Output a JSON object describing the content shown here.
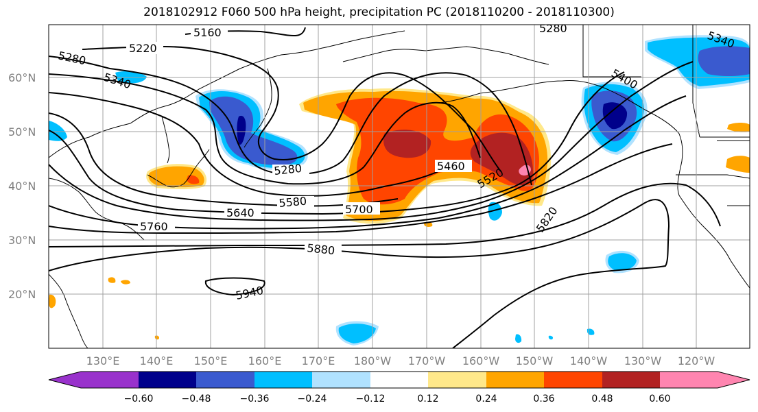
{
  "title": "2018102912 F060 500 hPa height, precipitation PC (2018110200 - 2018110300)",
  "latitude_labels": [
    "60°N",
    "50°N",
    "40°N",
    "30°N",
    "20°N"
  ],
  "longitude_labels": [
    "130°E",
    "140°E",
    "150°E",
    "160°E",
    "170°E",
    "180°W",
    "170°W",
    "160°W",
    "150°W",
    "140°W",
    "130°W",
    "120°W"
  ],
  "contour_labels": [
    "5160",
    "5220",
    "5280",
    "5280",
    "5340",
    "5340",
    "5280",
    "5400",
    "5460",
    "5520",
    "5580",
    "5640",
    "5700",
    "5760",
    "5820",
    "5880",
    "5940"
  ],
  "colorbar": {
    "ticks": [
      "−0.60",
      "−0.48",
      "−0.36",
      "−0.24",
      "−0.12",
      "0.12",
      "0.24",
      "0.36",
      "0.48",
      "0.60"
    ],
    "colors": [
      "#9932cc",
      "#00008b",
      "#3a5acf",
      "#00bfff",
      "#b0e2ff",
      "#ffffff",
      "#ffe88a",
      "#ffa500",
      "#ff4500",
      "#b22222",
      "#ff85b0"
    ]
  },
  "colors": {
    "positive_light": "#ffe88a",
    "positive": "#ffa500",
    "positive_strong": "#ff4500",
    "positive_max": "#b22222",
    "positive_extreme": "#ff85b0",
    "negative_light": "#b0e2ff",
    "negative": "#00bfff",
    "negative_strong": "#3a5acf",
    "negative_max": "#00008b",
    "gridline": "#a0a0a0"
  }
}
